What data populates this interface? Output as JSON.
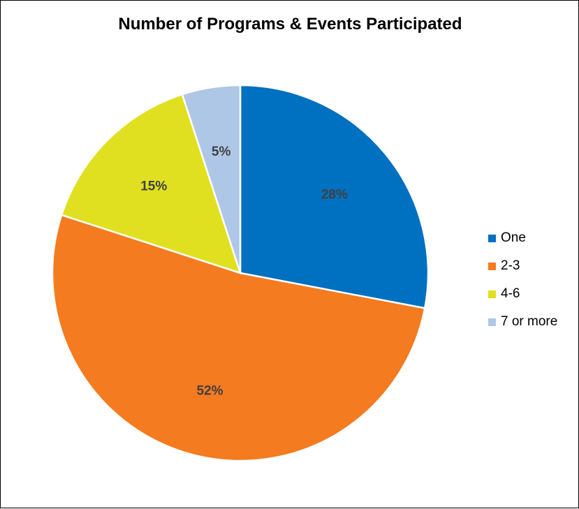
{
  "chart_data": {
    "type": "pie",
    "title": "Number of Programs & Events Participated",
    "categories": [
      "One",
      "2-3",
      "4-6",
      "7 or more"
    ],
    "values": [
      28,
      52,
      15,
      5
    ],
    "labels": [
      "28%",
      "52%",
      "15%",
      "5%"
    ],
    "colors": [
      "#0070C0",
      "#F47B20",
      "#E0E020",
      "#AFC7E6"
    ],
    "legend_position": "right"
  }
}
